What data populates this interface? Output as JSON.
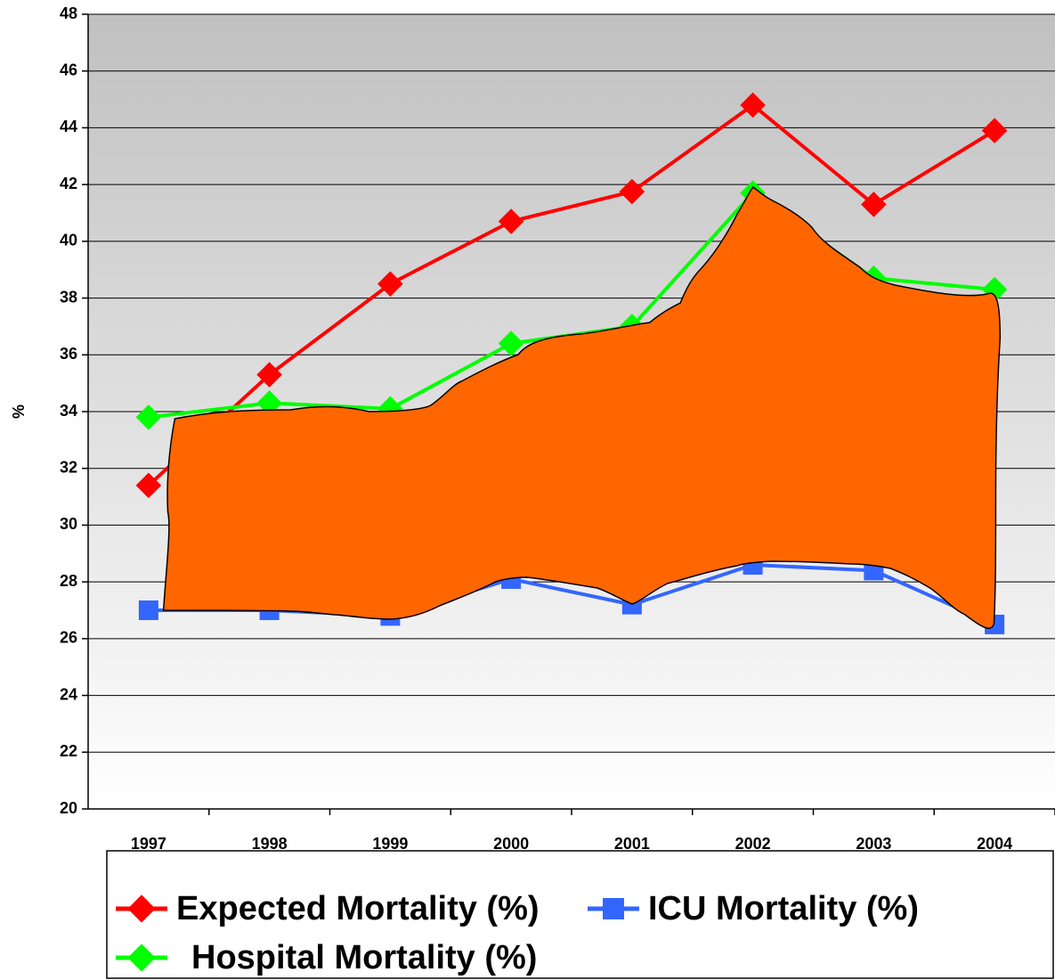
{
  "chart_data": {
    "type": "line",
    "y_label": "%",
    "categories": [
      "1997",
      "1998",
      "1999",
      "2000",
      "2001",
      "2002",
      "2003",
      "2004"
    ],
    "series": [
      {
        "name": "Expected Mortality (%)",
        "color": "#ff0000",
        "marker": "diamond",
        "values": [
          31.4,
          35.3,
          38.5,
          40.7,
          41.75,
          44.8,
          41.3,
          43.9
        ]
      },
      {
        "name": "ICU Mortality (%)",
        "color": "#3366ff",
        "marker": "square",
        "values": [
          27.0,
          27.0,
          26.8,
          28.1,
          27.2,
          28.6,
          28.4,
          26.5
        ]
      },
      {
        "name": "Hospital Mortality (%)",
        "color": "#00ff00",
        "marker": "diamond",
        "values": [
          33.8,
          34.3,
          34.1,
          36.4,
          37.0,
          41.7,
          38.7,
          38.3
        ]
      }
    ],
    "ylim": [
      20,
      48
    ],
    "yticks": [
      20,
      22,
      24,
      26,
      28,
      30,
      32,
      34,
      36,
      38,
      40,
      42,
      44,
      46,
      48
    ],
    "grid": true
  }
}
